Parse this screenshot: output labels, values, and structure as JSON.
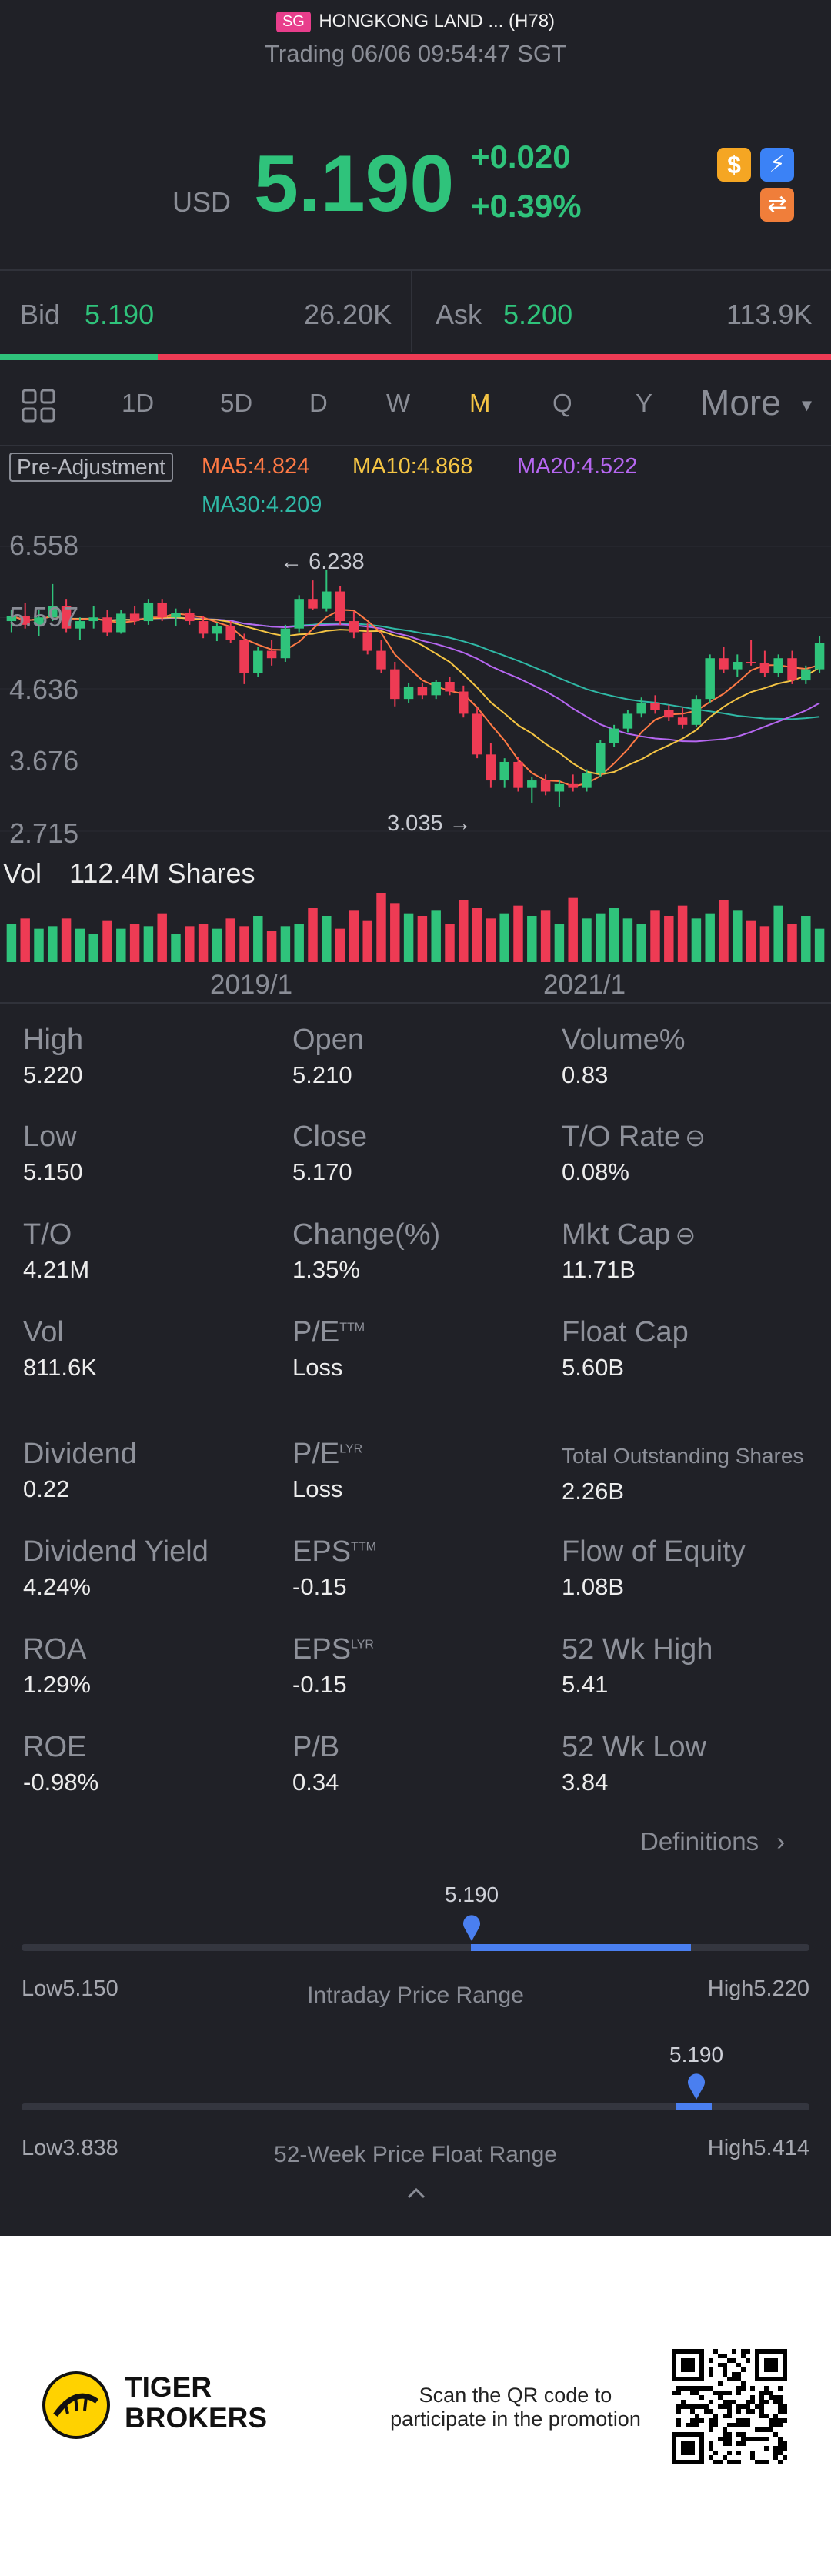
{
  "header": {
    "market_badge": "SG",
    "stock_name": "HONGKONG LAND ... (H78)",
    "trading_status": "Trading 06/06 09:54:47 SGT",
    "currency": "USD",
    "price": "5.190",
    "change": "+0.020",
    "change_pct": "+0.39%"
  },
  "quote": {
    "bid_label": "Bid",
    "bid_price": "5.190",
    "bid_size": "26.20K",
    "ask_label": "Ask",
    "ask_price": "5.200",
    "ask_size": "113.9K",
    "bid_ratio": 0.19
  },
  "tabs": {
    "items": [
      "1D",
      "5D",
      "D",
      "W",
      "M",
      "Q",
      "Y"
    ],
    "active": "M",
    "more": "More"
  },
  "indicators": {
    "adjustment": "Pre-Adjustment",
    "ma5": "MA5:4.824",
    "ma10": "MA10:4.868",
    "ma20": "MA20:4.522",
    "ma30": "MA30:4.209",
    "colors": {
      "ma5": "#ff7a45",
      "ma10": "#f5c544",
      "ma20": "#b667f1",
      "ma30": "#2fb9a6",
      "up": "#2fc37b",
      "down": "#ee3b54"
    }
  },
  "chart": {
    "y_labels": [
      "6.558",
      "5.597",
      "4.636",
      "3.676",
      "2.715"
    ],
    "max_marker": "6.238",
    "min_marker": "3.035",
    "vol_label": "Vol",
    "vol_value": "112.4M Shares",
    "x_labels": [
      "2019/1",
      "2021/1"
    ]
  },
  "chart_data": {
    "type": "candlestick",
    "x_labels": [
      "2019/1",
      "2021/1"
    ],
    "ylim": [
      2.715,
      6.558
    ],
    "ohlc": [
      [
        5.55,
        5.7,
        5.4,
        5.62
      ],
      [
        5.62,
        5.8,
        5.45,
        5.5
      ],
      [
        5.5,
        5.7,
        5.35,
        5.6
      ],
      [
        5.6,
        6.05,
        5.55,
        5.75
      ],
      [
        5.75,
        5.85,
        5.4,
        5.45
      ],
      [
        5.45,
        5.6,
        5.3,
        5.55
      ],
      [
        5.55,
        5.75,
        5.45,
        5.6
      ],
      [
        5.6,
        5.7,
        5.35,
        5.4
      ],
      [
        5.4,
        5.7,
        5.38,
        5.65
      ],
      [
        5.65,
        5.75,
        5.5,
        5.55
      ],
      [
        5.55,
        5.85,
        5.5,
        5.8
      ],
      [
        5.8,
        5.85,
        5.55,
        5.6
      ],
      [
        5.6,
        5.72,
        5.48,
        5.66
      ],
      [
        5.66,
        5.72,
        5.5,
        5.55
      ],
      [
        5.55,
        5.62,
        5.32,
        5.38
      ],
      [
        5.38,
        5.52,
        5.28,
        5.48
      ],
      [
        5.48,
        5.55,
        5.25,
        5.3
      ],
      [
        5.3,
        5.38,
        4.7,
        4.85
      ],
      [
        4.85,
        5.2,
        4.8,
        5.15
      ],
      [
        5.15,
        5.3,
        4.95,
        5.05
      ],
      [
        5.05,
        5.5,
        5.0,
        5.45
      ],
      [
        5.45,
        5.9,
        5.4,
        5.85
      ],
      [
        5.85,
        6.1,
        5.7,
        5.72
      ],
      [
        5.72,
        6.24,
        5.68,
        5.95
      ],
      [
        5.95,
        6.02,
        5.5,
        5.55
      ],
      [
        5.55,
        5.68,
        5.32,
        5.4
      ],
      [
        5.4,
        5.52,
        5.1,
        5.15
      ],
      [
        5.15,
        5.3,
        4.85,
        4.9
      ],
      [
        4.9,
        5.0,
        4.4,
        4.5
      ],
      [
        4.5,
        4.72,
        4.45,
        4.66
      ],
      [
        4.66,
        4.72,
        4.5,
        4.55
      ],
      [
        4.55,
        4.76,
        4.5,
        4.73
      ],
      [
        4.73,
        4.8,
        4.55,
        4.6
      ],
      [
        4.6,
        4.68,
        4.25,
        4.3
      ],
      [
        4.3,
        4.38,
        3.7,
        3.75
      ],
      [
        3.75,
        3.9,
        3.3,
        3.4
      ],
      [
        3.4,
        3.7,
        3.3,
        3.65
      ],
      [
        3.65,
        3.72,
        3.25,
        3.3
      ],
      [
        3.3,
        3.45,
        3.1,
        3.4
      ],
      [
        3.4,
        3.48,
        3.2,
        3.25
      ],
      [
        3.25,
        3.4,
        3.04,
        3.35
      ],
      [
        3.35,
        3.48,
        3.25,
        3.3
      ],
      [
        3.3,
        3.55,
        3.25,
        3.5
      ],
      [
        3.5,
        3.95,
        3.45,
        3.9
      ],
      [
        3.9,
        4.15,
        3.85,
        4.1
      ],
      [
        4.1,
        4.35,
        4.05,
        4.3
      ],
      [
        4.3,
        4.52,
        4.25,
        4.45
      ],
      [
        4.45,
        4.55,
        4.3,
        4.35
      ],
      [
        4.35,
        4.42,
        4.2,
        4.25
      ],
      [
        4.25,
        4.38,
        4.1,
        4.15
      ],
      [
        4.15,
        4.55,
        4.12,
        4.5
      ],
      [
        4.5,
        5.1,
        4.45,
        5.05
      ],
      [
        5.05,
        5.2,
        4.85,
        4.9
      ],
      [
        4.9,
        5.1,
        4.8,
        5.0
      ],
      [
        5.0,
        5.3,
        4.95,
        4.98
      ],
      [
        4.98,
        5.15,
        4.8,
        4.85
      ],
      [
        4.85,
        5.1,
        4.8,
        5.05
      ],
      [
        5.05,
        5.15,
        4.7,
        4.75
      ],
      [
        4.75,
        4.95,
        4.7,
        4.9
      ],
      [
        4.9,
        5.35,
        4.85,
        5.25
      ]
    ],
    "volume": [
      30,
      34,
      26,
      28,
      34,
      26,
      22,
      32,
      26,
      30,
      28,
      38,
      22,
      28,
      30,
      26,
      34,
      28,
      36,
      24,
      28,
      30,
      42,
      36,
      26,
      40,
      32,
      54,
      46,
      38,
      36,
      40,
      30,
      48,
      42,
      34,
      38,
      44,
      36,
      40,
      30,
      50,
      34,
      38,
      42,
      34,
      30,
      40,
      36,
      44,
      34,
      38,
      48,
      40,
      32,
      28,
      44,
      30,
      36,
      26
    ]
  },
  "stats": [
    {
      "label": "High",
      "value": "5.220"
    },
    {
      "label": "Open",
      "value": "5.210"
    },
    {
      "label": "Volume%",
      "value": "0.83"
    },
    {
      "label": "Low",
      "value": "5.150"
    },
    {
      "label": "Close",
      "value": "5.170"
    },
    {
      "label": "T/O Rate",
      "value": "0.08%"
    },
    {
      "label": "T/O",
      "value": "4.21M"
    },
    {
      "label": "Change(%)",
      "value": "1.35%"
    },
    {
      "label": "Mkt Cap",
      "value": "11.71B"
    },
    {
      "label": "Vol",
      "value": "811.6K"
    },
    {
      "label": "P/E",
      "sup": "TTM",
      "value": "Loss"
    },
    {
      "label": "Float Cap",
      "value": "5.60B"
    },
    {
      "label": "Dividend",
      "value": "0.22"
    },
    {
      "label": "P/E",
      "sup": "LYR",
      "value": "Loss"
    },
    {
      "label": "Total Outstanding Shares",
      "value": "2.26B"
    },
    {
      "label": "Dividend Yield",
      "value": "4.24%"
    },
    {
      "label": "EPS",
      "sup": "TTM",
      "value": "-0.15"
    },
    {
      "label": "Flow of Equity",
      "value": "1.08B"
    },
    {
      "label": "ROA",
      "value": "1.29%"
    },
    {
      "label": "EPS",
      "sup": "LYR",
      "value": "-0.15"
    },
    {
      "label": "52 Wk High",
      "value": "5.41"
    },
    {
      "label": "ROE",
      "value": "-0.98%"
    },
    {
      "label": "P/B",
      "value": "0.34"
    },
    {
      "label": "52 Wk Low",
      "value": "3.84"
    }
  ],
  "definitions": "Definitions",
  "intraday_range": {
    "title": "Intraday Price Range",
    "current": "5.190",
    "low": "Low5.150",
    "high": "High5.220",
    "current_fraction": 0.57,
    "fill_end_fraction": 0.85
  },
  "week52_range": {
    "title": "52-Week Price Float Range",
    "current": "5.190",
    "low": "Low3.838",
    "high": "High5.414",
    "current_fraction": 0.86
  },
  "promo": {
    "brand_line1": "TIGER",
    "brand_line2": "BROKERS",
    "text_line1": "Scan the QR code to",
    "text_line2": "participate in the promotion"
  }
}
